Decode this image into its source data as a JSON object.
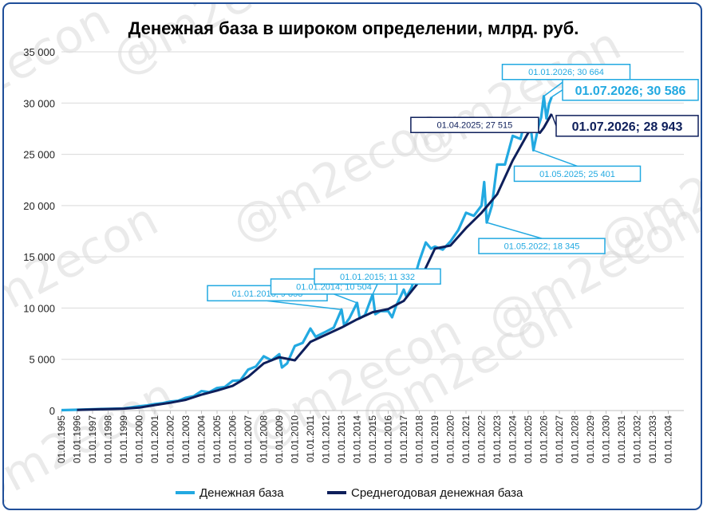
{
  "chart_data": {
    "type": "line",
    "title": "Денежная база в широком определении, млрд. руб.",
    "watermark": "@m2econ",
    "ylim": [
      0,
      35000
    ],
    "yticks": [
      0,
      5000,
      10000,
      15000,
      20000,
      25000,
      30000,
      35000
    ],
    "ytick_labels": [
      "0",
      "5 000",
      "10 000",
      "15 000",
      "20 000",
      "25 000",
      "30 000",
      "35 000"
    ],
    "xlim": [
      "01.01.1995",
      "01.01.2035"
    ],
    "xtick_labels": [
      "01.01.1995",
      "01.01.1996",
      "01.01.1997",
      "01.01.1998",
      "01.01.1999",
      "01.01.2000",
      "01.01.2001",
      "01.01.2002",
      "01.01.2003",
      "01.01.2004",
      "01.01.2005",
      "01.01.2006",
      "01.01.2007",
      "01.01.2008",
      "01.01.2009",
      "01.01.2010",
      "01.01.2011",
      "01.01.2012",
      "01.01.2013",
      "01.01.2014",
      "01.01.2015",
      "01.01.2016",
      "01.01.2017",
      "01.01.2018",
      "01.01.2019",
      "01.01.2020",
      "01.01.2021",
      "01.01.2022",
      "01.01.2023",
      "01.01.2024",
      "01.01.2025",
      "01.01.2026",
      "01.01.2027",
      "01.01.2028",
      "01.01.2029",
      "01.01.2030",
      "01.01.2031",
      "01.01.2032",
      "01.01.2033",
      "01.01.2034"
    ],
    "grid": true,
    "legend_placement": "bottom",
    "series": [
      {
        "name": "Денежная база",
        "color": "#22a9e1",
        "points": [
          [
            "01.01.1995",
            40
          ],
          [
            "01.01.1996",
            80
          ],
          [
            "01.01.1997",
            130
          ],
          [
            "01.01.1998",
            170
          ],
          [
            "01.01.1999",
            210
          ],
          [
            "01.01.2000",
            420
          ],
          [
            "01.07.2000",
            500
          ],
          [
            "01.01.2001",
            640
          ],
          [
            "01.07.2001",
            720
          ],
          [
            "01.01.2002",
            880
          ],
          [
            "01.07.2002",
            960
          ],
          [
            "01.01.2003",
            1250
          ],
          [
            "01.07.2003",
            1400
          ],
          [
            "01.01.2004",
            1900
          ],
          [
            "01.07.2004",
            1800
          ],
          [
            "01.01.2005",
            2200
          ],
          [
            "01.07.2005",
            2300
          ],
          [
            "01.01.2006",
            2900
          ],
          [
            "01.07.2006",
            2950
          ],
          [
            "01.01.2007",
            4000
          ],
          [
            "01.07.2007",
            4300
          ],
          [
            "01.01.2008",
            5300
          ],
          [
            "01.07.2008",
            4900
          ],
          [
            "01.01.2009",
            5500
          ],
          [
            "01.03.2009",
            4200
          ],
          [
            "01.07.2009",
            4600
          ],
          [
            "01.01.2010",
            6300
          ],
          [
            "01.07.2010",
            6600
          ],
          [
            "01.01.2011",
            8000
          ],
          [
            "01.05.2011",
            7200
          ],
          [
            "01.01.2012",
            7700
          ],
          [
            "01.07.2012",
            8100
          ],
          [
            "01.01.2013",
            9853
          ],
          [
            "01.03.2013",
            8300
          ],
          [
            "01.07.2013",
            9000
          ],
          [
            "01.01.2014",
            10504
          ],
          [
            "01.03.2014",
            9000
          ],
          [
            "01.07.2014",
            9300
          ],
          [
            "01.01.2015",
            11332
          ],
          [
            "01.03.2015",
            9400
          ],
          [
            "01.07.2015",
            9700
          ],
          [
            "01.01.2016",
            9700
          ],
          [
            "01.04.2016",
            9100
          ],
          [
            "01.07.2016",
            10200
          ],
          [
            "01.01.2017",
            11800
          ],
          [
            "01.03.2017",
            11100
          ],
          [
            "01.07.2017",
            12000
          ],
          [
            "01.01.2018",
            14600
          ],
          [
            "01.06.2018",
            16400
          ],
          [
            "01.10.2018",
            15800
          ],
          [
            "01.01.2019",
            16000
          ],
          [
            "01.07.2019",
            15700
          ],
          [
            "01.01.2020",
            16500
          ],
          [
            "01.07.2020",
            17600
          ],
          [
            "01.01.2021",
            19300
          ],
          [
            "01.07.2021",
            19000
          ],
          [
            "01.01.2022",
            20000
          ],
          [
            "01.03.2022",
            22300
          ],
          [
            "01.05.2022",
            18345
          ],
          [
            "01.09.2022",
            20000
          ],
          [
            "01.01.2023",
            24000
          ],
          [
            "01.07.2023",
            24000
          ],
          [
            "01.01.2024",
            26800
          ],
          [
            "01.07.2024",
            26500
          ],
          [
            "01.10.2024",
            28000
          ],
          [
            "01.01.2025",
            28400
          ],
          [
            "01.03.2025",
            27500
          ],
          [
            "01.05.2025",
            25401
          ],
          [
            "01.09.2025",
            27800
          ],
          [
            "01.11.2025",
            28600
          ],
          [
            "01.01.2026",
            30664
          ],
          [
            "01.03.2026",
            28500
          ],
          [
            "01.05.2026",
            29900
          ],
          [
            "01.07.2026",
            30586
          ]
        ]
      },
      {
        "name": "Среднегодовая денежная база",
        "color": "#0e1f5b",
        "points": [
          [
            "01.01.1996",
            60
          ],
          [
            "01.01.1997",
            110
          ],
          [
            "01.01.1998",
            150
          ],
          [
            "01.01.1999",
            190
          ],
          [
            "01.01.2000",
            290
          ],
          [
            "01.01.2001",
            540
          ],
          [
            "01.01.2002",
            760
          ],
          [
            "01.01.2003",
            1050
          ],
          [
            "01.01.2004",
            1550
          ],
          [
            "01.01.2005",
            1950
          ],
          [
            "01.01.2006",
            2400
          ],
          [
            "01.01.2007",
            3300
          ],
          [
            "01.01.2008",
            4600
          ],
          [
            "01.01.2009",
            5200
          ],
          [
            "01.01.2010",
            4900
          ],
          [
            "01.01.2011",
            6700
          ],
          [
            "01.01.2012",
            7400
          ],
          [
            "01.01.2013",
            8100
          ],
          [
            "01.01.2014",
            8900
          ],
          [
            "01.01.2015",
            9600
          ],
          [
            "01.01.2016",
            9900
          ],
          [
            "01.01.2017",
            10700
          ],
          [
            "01.01.2018",
            12600
          ],
          [
            "01.01.2019",
            15800
          ],
          [
            "01.01.2020",
            16100
          ],
          [
            "01.01.2021",
            17800
          ],
          [
            "01.01.2022",
            19300
          ],
          [
            "01.01.2023",
            21100
          ],
          [
            "01.01.2024",
            24400
          ],
          [
            "01.01.2025",
            27100
          ],
          [
            "01.04.2025",
            27515
          ],
          [
            "01.10.2025",
            27100
          ],
          [
            "01.01.2026",
            27600
          ],
          [
            "01.07.2026",
            28943
          ]
        ]
      }
    ],
    "annotations": [
      {
        "text": "01.01.2013;  9 853",
        "series": 0
      },
      {
        "text": "01.01.2014;  10 504",
        "series": 0
      },
      {
        "text": "01.01.2015;  11 332",
        "series": 0
      },
      {
        "text": "01.05.2022;  18 345",
        "series": 0
      },
      {
        "text": "01.05.2025;  25 401",
        "series": 0
      },
      {
        "text": "01.01.2026;  30 664",
        "series": 0
      },
      {
        "text": "01.07.2026;  30 586",
        "series": 0
      },
      {
        "text": "01.04.2025;  27 515",
        "series": 1
      },
      {
        "text": "01.07.2026;  28 943",
        "series": 1
      }
    ]
  }
}
